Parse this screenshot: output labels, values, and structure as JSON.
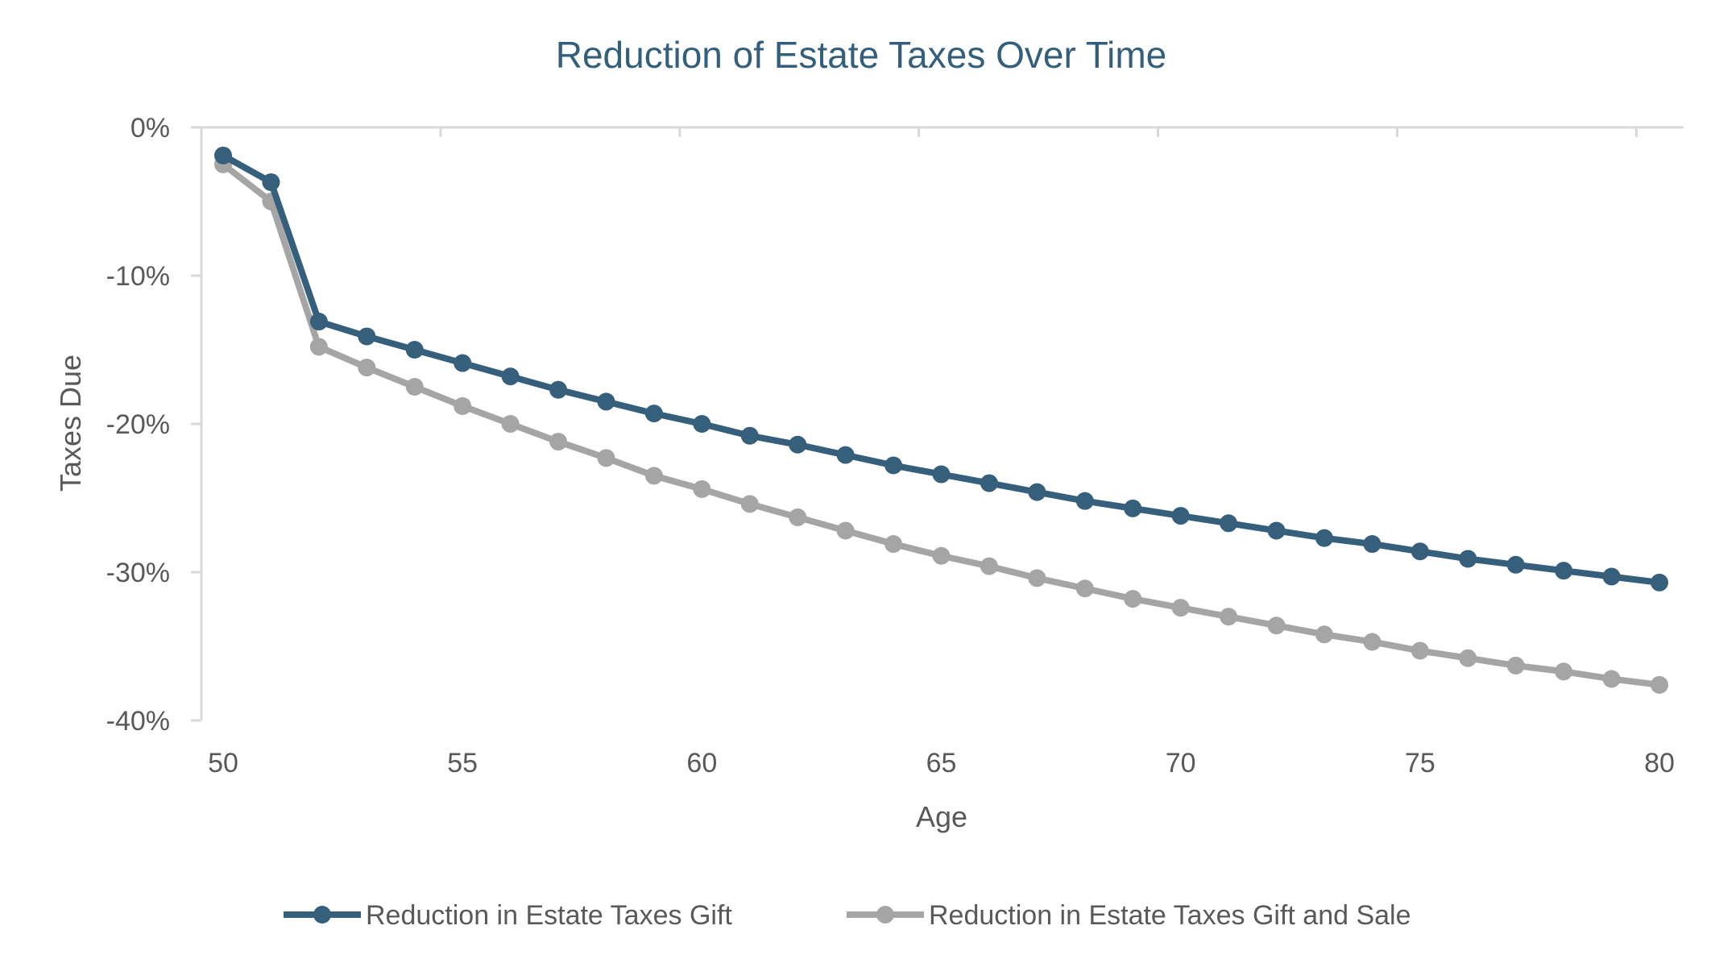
{
  "chart_data": {
    "type": "line",
    "title": "Reduction of Estate Taxes Over Time",
    "xlabel": "Age",
    "ylabel": "Taxes Due",
    "x": [
      50,
      51,
      52,
      53,
      54,
      55,
      56,
      57,
      58,
      59,
      60,
      61,
      62,
      63,
      64,
      65,
      66,
      67,
      68,
      69,
      70,
      71,
      72,
      73,
      74,
      75,
      76,
      77,
      78,
      79,
      80
    ],
    "xlim": [
      50,
      80
    ],
    "ylim": [
      -40,
      0
    ],
    "x_ticks": [
      "50",
      "55",
      "60",
      "65",
      "70",
      "75",
      "80"
    ],
    "y_ticks": [
      "0%",
      "-10%",
      "-20%",
      "-30%",
      "-40%"
    ],
    "legend_position": "bottom",
    "grid": false,
    "series": [
      {
        "name": "Reduction in Estate Taxes Gift",
        "color": "#365f7b",
        "values": [
          -1.9,
          -3.7,
          -13.1,
          -14.1,
          -15.0,
          -15.9,
          -16.8,
          -17.7,
          -18.5,
          -19.3,
          -20.0,
          -20.8,
          -21.4,
          -22.1,
          -22.8,
          -23.4,
          -24.0,
          -24.6,
          -25.2,
          -25.7,
          -26.2,
          -26.7,
          -27.2,
          -27.7,
          -28.1,
          -28.6,
          -29.1,
          -29.5,
          -29.9,
          -30.3,
          -30.7
        ]
      },
      {
        "name": "Reduction in Estate Taxes Gift and Sale",
        "color": "#a5a5a5",
        "values": [
          -2.5,
          -5.0,
          -14.8,
          -16.2,
          -17.5,
          -18.8,
          -20.0,
          -21.2,
          -22.3,
          -23.5,
          -24.4,
          -25.4,
          -26.3,
          -27.2,
          -28.1,
          -28.9,
          -29.6,
          -30.4,
          -31.1,
          -31.8,
          -32.4,
          -33.0,
          -33.6,
          -34.2,
          -34.7,
          -35.3,
          -35.8,
          -36.3,
          -36.7,
          -37.2,
          -37.6
        ]
      }
    ]
  }
}
